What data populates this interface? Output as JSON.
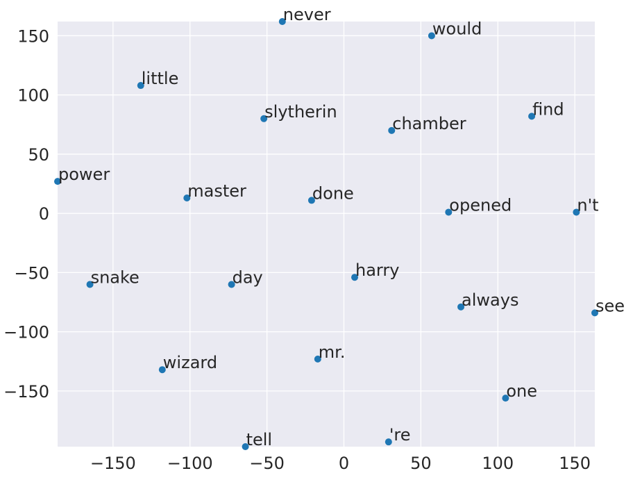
{
  "chart_data": {
    "type": "scatter",
    "title": "",
    "xlabel": "",
    "ylabel": "",
    "xlim": [
      -186,
      163
    ],
    "ylim": [
      -197,
      162
    ],
    "x_ticks": [
      -150,
      -100,
      -50,
      0,
      50,
      100,
      150
    ],
    "y_ticks": [
      150,
      100,
      50,
      0,
      -50,
      -100,
      -150
    ],
    "x_tick_labels": [
      "−150",
      "−100",
      "−50",
      "0",
      "50",
      "100",
      "150"
    ],
    "y_tick_labels": [
      "150",
      "100",
      "50",
      "0",
      "−50",
      "−100",
      "−150"
    ],
    "grid": true,
    "background_color": "#eaeaf2",
    "marker_color": "#1f77b4",
    "points": [
      {
        "label": "never",
        "x": -40,
        "y": 162
      },
      {
        "label": "would",
        "x": 57,
        "y": 150
      },
      {
        "label": "little",
        "x": -132,
        "y": 108
      },
      {
        "label": "slytherin",
        "x": -52,
        "y": 80
      },
      {
        "label": "find",
        "x": 122,
        "y": 82
      },
      {
        "label": "chamber",
        "x": 31,
        "y": 70
      },
      {
        "label": "power",
        "x": -186,
        "y": 27
      },
      {
        "label": "master",
        "x": -102,
        "y": 13
      },
      {
        "label": "done",
        "x": -21,
        "y": 11
      },
      {
        "label": "opened",
        "x": 68,
        "y": 1
      },
      {
        "label": "n't",
        "x": 151,
        "y": 1
      },
      {
        "label": "snake",
        "x": -165,
        "y": -60
      },
      {
        "label": "day",
        "x": -73,
        "y": -60
      },
      {
        "label": "harry",
        "x": 7,
        "y": -54
      },
      {
        "label": "always",
        "x": 76,
        "y": -79
      },
      {
        "label": "see",
        "x": 163,
        "y": -84
      },
      {
        "label": "mr.",
        "x": -17,
        "y": -123
      },
      {
        "label": "wizard",
        "x": -118,
        "y": -132
      },
      {
        "label": "one",
        "x": 105,
        "y": -156
      },
      {
        "label": "'re",
        "x": 29,
        "y": -193
      },
      {
        "label": "tell",
        "x": -64,
        "y": -197
      }
    ]
  }
}
